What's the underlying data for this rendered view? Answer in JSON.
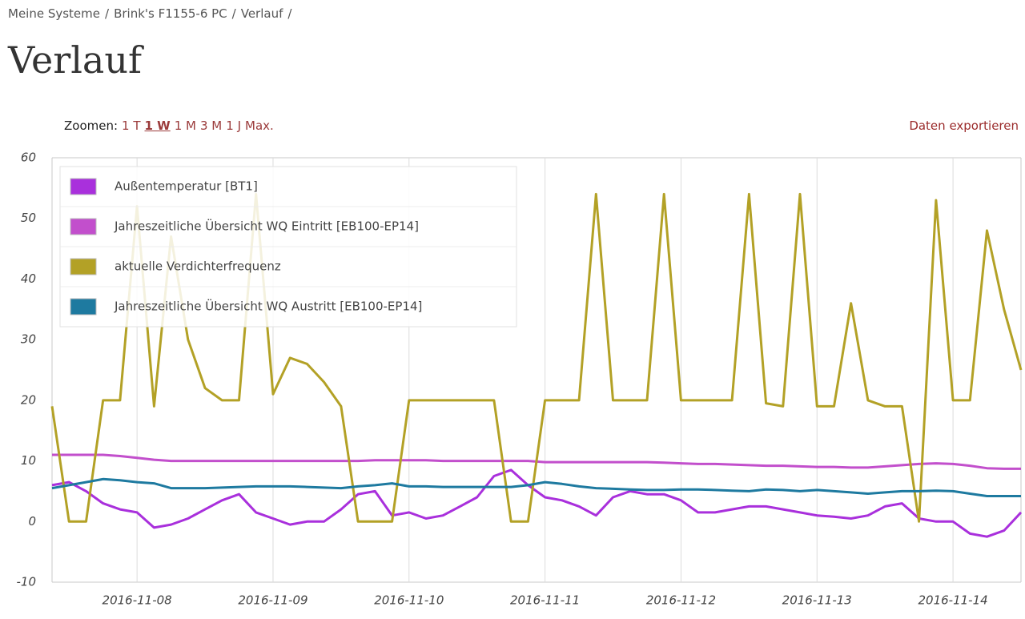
{
  "breadcrumb": [
    "Meine Systeme",
    "Brink's F1155-6 PC",
    "Verlauf"
  ],
  "breadcrumb_separator": "/",
  "page_title": "Verlauf",
  "zoom_label": "Zoomen:",
  "zoom_options": [
    "1 T",
    "1 W",
    "1 M",
    "3 M",
    "1 J",
    "Max."
  ],
  "zoom_active": "1 W",
  "export_link": "Daten exportieren",
  "chart_data": {
    "type": "line",
    "x": [
      1478509200000,
      1478520000000,
      1478530800000,
      1478541600000,
      1478552400000,
      1478563200000,
      1478574000000,
      1478584800000,
      1478595600000,
      1478606400000,
      1478617200000,
      1478628000000,
      1478638800000,
      1478649600000,
      1478660400000,
      1478671200000,
      1478682000000,
      1478692800000,
      1478703600000,
      1478714400000,
      1478725200000,
      1478736000000,
      1478746800000,
      1478757600000,
      1478768400000,
      1478779200000,
      1478790000000,
      1478800800000,
      1478811600000,
      1478822400000,
      1478833200000,
      1478844000000,
      1478854800000,
      1478865600000,
      1478876400000,
      1478887200000,
      1478898000000,
      1478908800000,
      1478919600000,
      1478930400000,
      1478941200000,
      1478952000000,
      1478962800000,
      1478973600000,
      1478984400000,
      1478995200000,
      1479006000000,
      1479016800000,
      1479027600000,
      1479038400000,
      1479049200000,
      1479060000000,
      1479070800000,
      1479081600000,
      1479092400000,
      1479103200000,
      1479114000000,
      1479124800000
    ],
    "series": [
      {
        "name": "Außentemperatur [BT1]",
        "color": "#a930dc",
        "values": [
          6,
          6.5,
          5,
          3,
          2,
          1.5,
          -1,
          -0.5,
          0.5,
          2,
          3.5,
          4.5,
          1.5,
          0.5,
          -0.5,
          0,
          0,
          2,
          4.5,
          5,
          1,
          1.5,
          0.5,
          1,
          2.5,
          4,
          7.5,
          8.5,
          6,
          4,
          3.5,
          2.5,
          1,
          4,
          5,
          4.5,
          4.5,
          3.5,
          1.5,
          1.5,
          2,
          2.5,
          2.5,
          2,
          1.5,
          1,
          0.8,
          0.5,
          1,
          2.5,
          3,
          0.5,
          0,
          0,
          -2,
          -2.5,
          -1.5,
          1.5
        ]
      },
      {
        "name": "Jahreszeitliche Übersicht WQ Eintritt [EB100-EP14]",
        "color": "#c24fcc",
        "values": [
          11,
          11,
          11,
          11,
          10.8,
          10.5,
          10.2,
          10,
          10,
          10,
          10,
          10,
          10,
          10,
          10,
          10,
          10,
          10,
          10,
          10.1,
          10.1,
          10.1,
          10.1,
          10,
          10,
          10,
          10,
          10,
          10,
          9.8,
          9.8,
          9.8,
          9.8,
          9.8,
          9.8,
          9.8,
          9.7,
          9.6,
          9.5,
          9.5,
          9.4,
          9.3,
          9.2,
          9.2,
          9.1,
          9,
          9,
          8.9,
          8.9,
          9.1,
          9.3,
          9.5,
          9.6,
          9.5,
          9.2,
          8.8,
          8.7,
          8.7
        ]
      },
      {
        "name": "aktuelle Verdichterfrequenz",
        "color": "#b3a126",
        "values": [
          19,
          0,
          0,
          20,
          20,
          52,
          19,
          47,
          30,
          22,
          20,
          20,
          54,
          21,
          27,
          26,
          23,
          19,
          0,
          0,
          0,
          20,
          20,
          20,
          20,
          20,
          20,
          0,
          0,
          20,
          20,
          20,
          54,
          20,
          20,
          20,
          54,
          20,
          20,
          20,
          20,
          54,
          19.5,
          19,
          54,
          19,
          19,
          36,
          20,
          19,
          19,
          0,
          53,
          20,
          20,
          48,
          35,
          25
        ]
      },
      {
        "name": "Jahreszeitliche Übersicht WQ Austritt [EB100-EP14]",
        "color": "#1e7aa0",
        "values": [
          5.5,
          6,
          6.5,
          7,
          6.8,
          6.5,
          6.3,
          5.5,
          5.5,
          5.5,
          5.6,
          5.7,
          5.8,
          5.8,
          5.8,
          5.7,
          5.6,
          5.5,
          5.8,
          6,
          6.3,
          5.8,
          5.8,
          5.7,
          5.7,
          5.7,
          5.7,
          5.7,
          6,
          6.5,
          6.2,
          5.8,
          5.5,
          5.4,
          5.3,
          5.2,
          5.2,
          5.3,
          5.3,
          5.2,
          5.1,
          5,
          5.3,
          5.2,
          5,
          5.2,
          5,
          4.8,
          4.6,
          4.8,
          5,
          5,
          5.1,
          5,
          4.6,
          4.2,
          4.2,
          4.2
        ]
      }
    ],
    "xlim": [
      1478509200000,
      1479124800000
    ],
    "xticks": [
      {
        "value": 1478563200000,
        "label": "2016-11-08"
      },
      {
        "value": 1478649600000,
        "label": "2016-11-09"
      },
      {
        "value": 1478736000000,
        "label": "2016-11-10"
      },
      {
        "value": 1478822400000,
        "label": "2016-11-11"
      },
      {
        "value": 1478908800000,
        "label": "2016-11-12"
      },
      {
        "value": 1478995200000,
        "label": "2016-11-13"
      },
      {
        "value": 1479081600000,
        "label": "2016-11-14"
      }
    ],
    "ylim": [
      -10,
      60
    ],
    "yticks": [
      -10,
      0,
      10,
      20,
      30,
      40,
      50,
      60
    ],
    "grid": true,
    "legend": "top-left"
  }
}
